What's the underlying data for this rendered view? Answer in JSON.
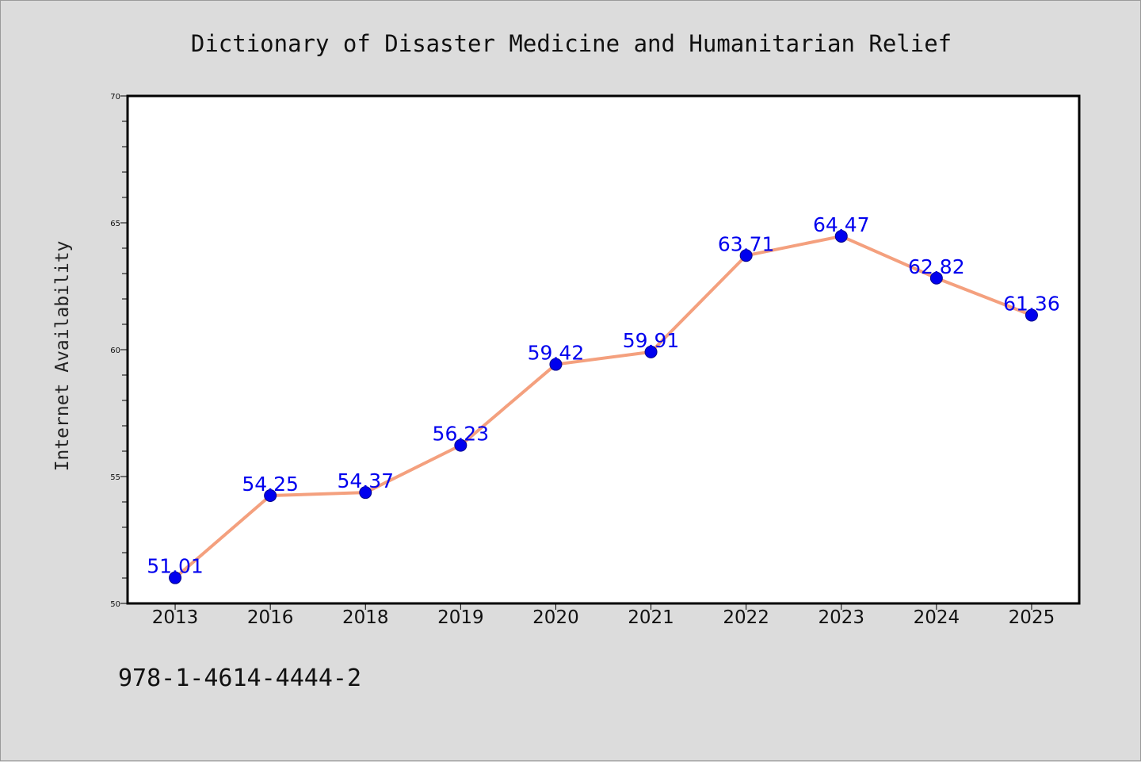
{
  "chart_data": {
    "type": "line",
    "title": "Dictionary of Disaster Medicine and Humanitarian Relief",
    "xlabel": "",
    "ylabel": "Internet Availability",
    "categories": [
      "2013",
      "2016",
      "2018",
      "2019",
      "2020",
      "2021",
      "2022",
      "2023",
      "2024",
      "2025"
    ],
    "series": [
      {
        "values": [
          51.01,
          54.25,
          54.37,
          56.23,
          59.42,
          59.91,
          63.71,
          64.47,
          62.82,
          61.36
        ],
        "line_color": "#f4a07e",
        "marker_color": "#0000ee",
        "label_color": "#0000ee"
      }
    ],
    "data_labels": [
      "51.01",
      "54.25",
      "54.37",
      "56.23",
      "59.42",
      "59.91",
      "63.71",
      "64.47",
      "62.82",
      "61.36"
    ],
    "ylim": [
      50,
      70
    ],
    "yticks": [
      "50",
      "55",
      "60",
      "65",
      "70"
    ],
    "grid": false,
    "legend": "none"
  },
  "footer": {
    "isbn": "978-1-4614-4444-2"
  },
  "colors": {
    "background": "#dcdcdc",
    "plot_background": "#ffffff",
    "axis": "#000000"
  }
}
